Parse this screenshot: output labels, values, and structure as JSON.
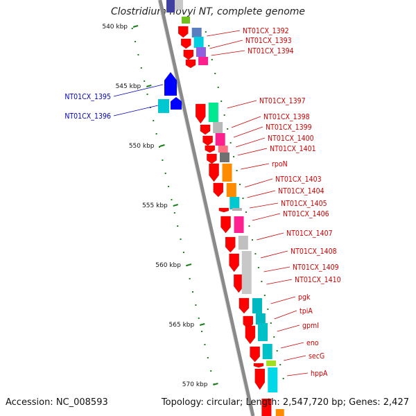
{
  "title": "Clostridium novyi NT, complete genome",
  "footer": {
    "accession": "Accession: NC_008593",
    "summary": "Topology: circular; Length: 2,547,720 bp; Genes: 2,427"
  },
  "colors": {
    "forward_strand_label": "#cc0000",
    "reverse_strand_label": "#0000bb",
    "backbone": "#8a8a8a",
    "tick": "#1a7f1a",
    "gene_arrow_forward": "#ff0000",
    "gene_arrow_reverse": "#0000ff"
  },
  "axis": {
    "unit": "kbp",
    "tick_labels": [
      "540 kbp",
      "545 kbp",
      "550 kbp",
      "555 kbp",
      "560 kbp",
      "565 kbp",
      "570 kbp"
    ]
  },
  "genes_forward": [
    {
      "name": "NT01CX_1392",
      "color": "#5a7fc0"
    },
    {
      "name": "NT01CX_1393",
      "color": "#00d0e0"
    },
    {
      "name": "NT01CX_1394",
      "color": "#ff2090"
    },
    {
      "name": "NT01CX_1397",
      "color": "#00e890"
    },
    {
      "name": "NT01CX_1398",
      "color": "#b8b8b8"
    },
    {
      "name": "NT01CX_1399",
      "color": "#ff2090"
    },
    {
      "name": "NT01CX_1400",
      "color": "#ff7080"
    },
    {
      "name": "NT01CX_1401",
      "color": "#707070"
    },
    {
      "name": "rpoN",
      "color": "#ff8c00"
    },
    {
      "name": "NT01CX_1403",
      "color": "#ff8c00"
    },
    {
      "name": "NT01CX_1404",
      "color": "#ff8c00"
    },
    {
      "name": "NT01CX_1405",
      "color": "#00c8d0"
    },
    {
      "name": "NT01CX_1406",
      "color": "#ff2090"
    },
    {
      "name": "NT01CX_1407",
      "color": "#c0c0c0"
    },
    {
      "name": "NT01CX_1408",
      "color": "#c8c8c8"
    },
    {
      "name": "NT01CX_1409",
      "color": "#c8c8c8"
    },
    {
      "name": "NT01CX_1410",
      "color": "#c8c8c8"
    },
    {
      "name": "pgk",
      "color": "#00b8c0"
    },
    {
      "name": "tpiA",
      "color": "#00b8c0"
    },
    {
      "name": "gpmI",
      "color": "#00c0c8"
    },
    {
      "name": "eno",
      "color": "#00c0c8"
    },
    {
      "name": "secG",
      "color": "#a0e020"
    },
    {
      "name": "hppA",
      "color": "#00d8e8"
    }
  ],
  "genes_reverse": [
    {
      "name": "NT01CX_1395",
      "color": "#0000ff"
    },
    {
      "name": "NT01CX_1396",
      "color": "#00c8d0"
    }
  ]
}
